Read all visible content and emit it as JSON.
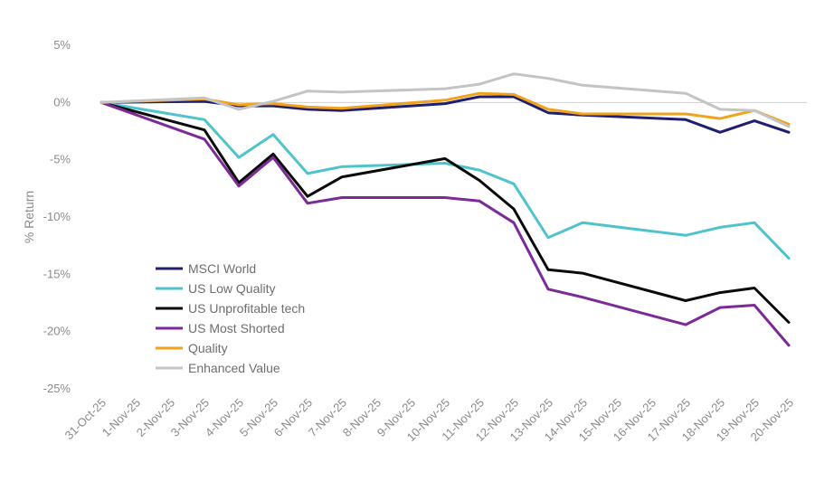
{
  "chart_data": {
    "type": "line",
    "title": "",
    "xlabel": "",
    "ylabel": "% Return",
    "ylim": [
      -25,
      5
    ],
    "yticks": [
      5,
      0,
      -5,
      -10,
      -15,
      -20,
      -25
    ],
    "ytick_labels": [
      "5%",
      "0%",
      "-5%",
      "-10%",
      "-15%",
      "-20%",
      "-25%"
    ],
    "grid": "horizontal zero line only",
    "legend_position": "center-left",
    "categories": [
      "31-Oct-25",
      "1-Nov-25",
      "2-Nov-25",
      "3-Nov-25",
      "4-Nov-25",
      "5-Nov-25",
      "6-Nov-25",
      "7-Nov-25",
      "8-Nov-25",
      "9-Nov-25",
      "10-Nov-25",
      "11-Nov-25",
      "12-Nov-25",
      "13-Nov-25",
      "14-Nov-25",
      "15-Nov-25",
      "16-Nov-25",
      "17-Nov-25",
      "18-Nov-25",
      "19-Nov-25",
      "20-Nov-25"
    ],
    "series": [
      {
        "name": "MSCI World",
        "color": "#1f1f6e",
        "values": [
          0,
          null,
          null,
          0.1,
          -0.3,
          -0.3,
          -0.6,
          -0.7,
          null,
          null,
          -0.1,
          0.5,
          0.5,
          -0.9,
          -1.1,
          null,
          null,
          -1.5,
          -2.6,
          -1.6,
          -2.6
        ]
      },
      {
        "name": "US Low Quality",
        "color": "#4ec3cc",
        "values": [
          0,
          null,
          null,
          -1.5,
          -4.8,
          -2.8,
          -6.2,
          -5.6,
          null,
          null,
          -5.3,
          -5.9,
          -7.1,
          -11.8,
          -10.5,
          null,
          null,
          -11.6,
          -10.9,
          -10.5,
          -13.6
        ]
      },
      {
        "name": "US Unprofitable tech",
        "color": "#0a0a0a",
        "values": [
          0,
          null,
          null,
          -2.4,
          -7.0,
          -4.5,
          -8.2,
          -6.5,
          null,
          null,
          -4.9,
          -6.8,
          -9.3,
          -14.6,
          -14.9,
          null,
          null,
          -17.3,
          -16.6,
          -16.2,
          -19.2
        ]
      },
      {
        "name": "US Most Shorted",
        "color": "#7b2a96",
        "values": [
          0,
          null,
          null,
          -3.2,
          -7.3,
          -4.8,
          -8.8,
          -8.3,
          null,
          null,
          -8.3,
          -8.6,
          -10.5,
          -16.3,
          -17.0,
          null,
          null,
          -19.4,
          -17.9,
          -17.7,
          -21.2
        ]
      },
      {
        "name": "Quality",
        "color": "#f0a21c",
        "values": [
          0,
          null,
          null,
          0.3,
          -0.2,
          -0.1,
          -0.4,
          -0.5,
          null,
          null,
          0.2,
          0.8,
          0.7,
          -0.6,
          -1.0,
          null,
          null,
          -1.0,
          -1.4,
          -0.7,
          -1.9
        ]
      },
      {
        "name": "Enhanced Value",
        "color": "#c4c4c4",
        "values": [
          0,
          null,
          null,
          0.4,
          -0.6,
          0.1,
          1.0,
          0.9,
          null,
          null,
          1.2,
          1.6,
          2.5,
          2.1,
          1.5,
          null,
          null,
          0.8,
          -0.6,
          -0.7,
          -2.1
        ]
      }
    ]
  }
}
